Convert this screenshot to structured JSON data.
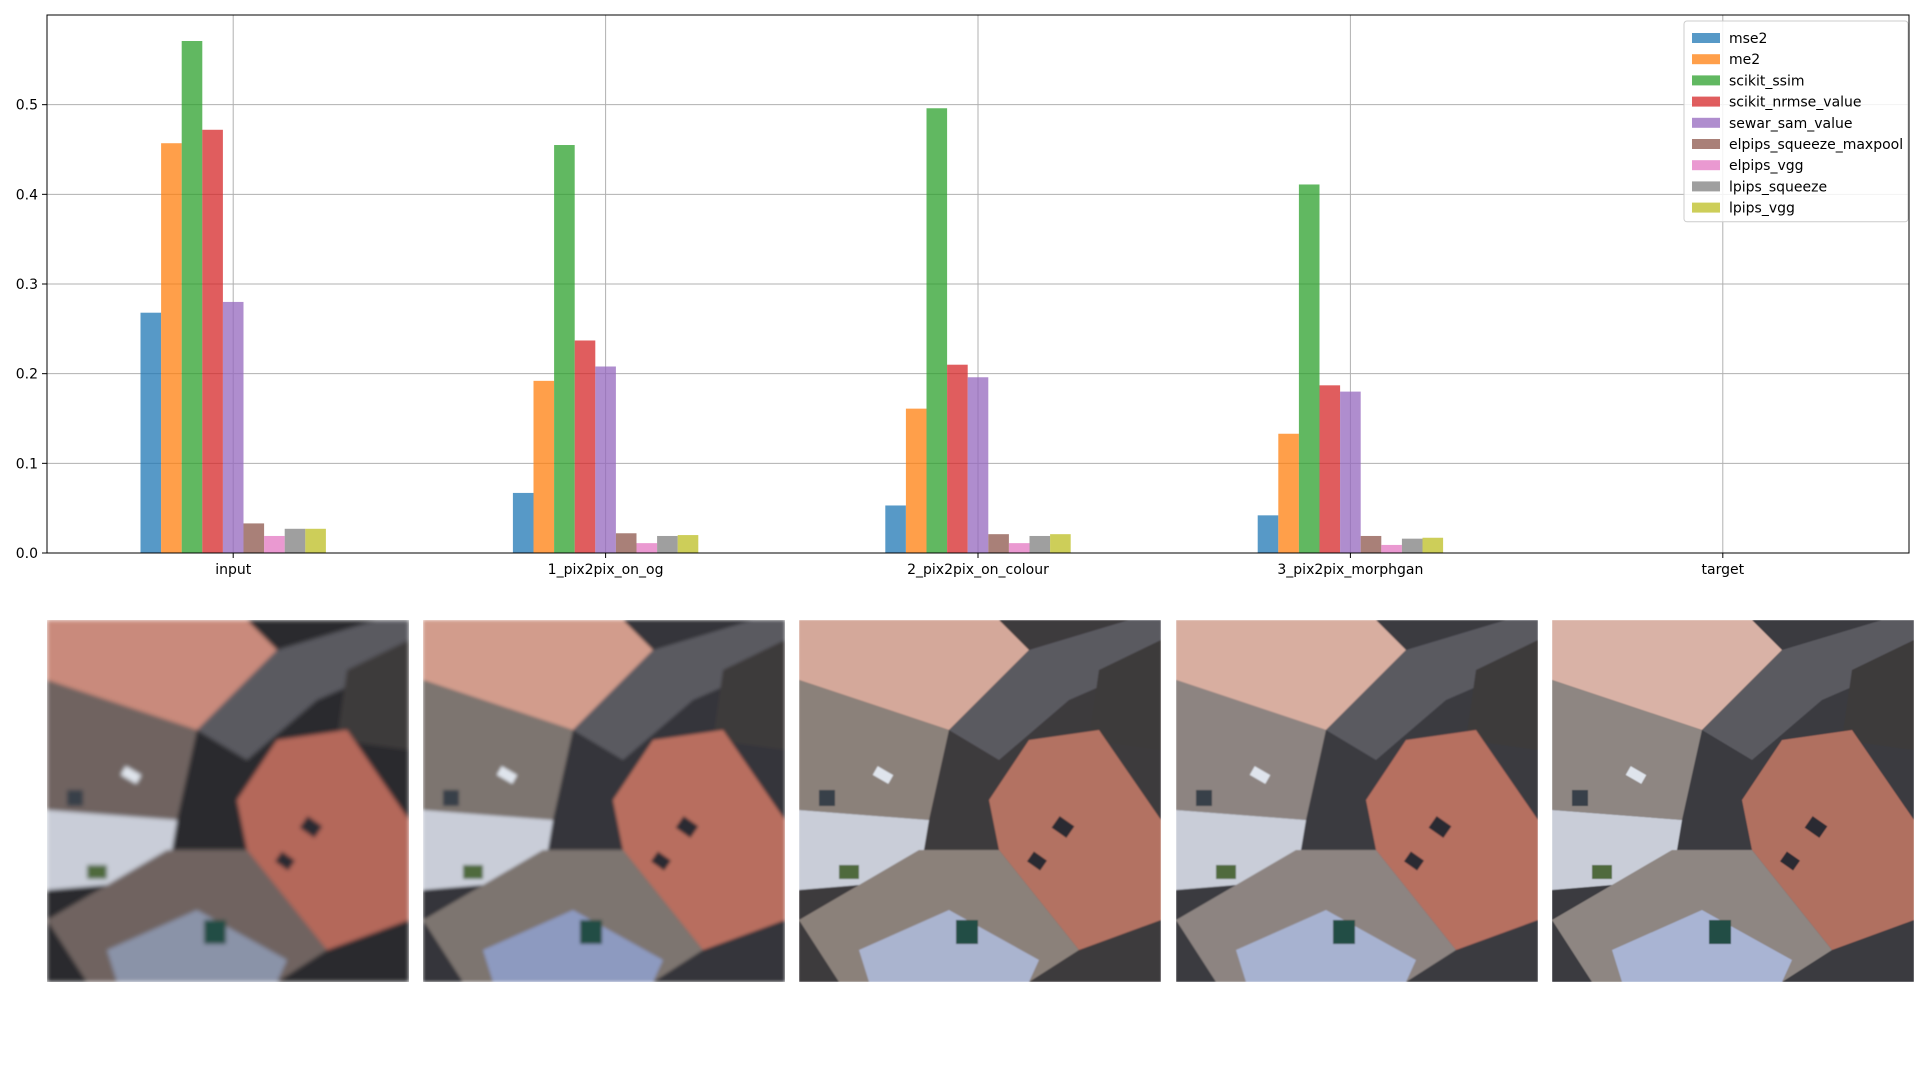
{
  "chart_data": {
    "type": "bar",
    "categories": [
      "input",
      "1_pix2pix_on_og",
      "2_pix2pix_on_colour",
      "3_pix2pix_morphgan",
      "target"
    ],
    "ylim": [
      0,
      0.6
    ],
    "yticks": [
      "0.0",
      "0.1",
      "0.2",
      "0.3",
      "0.4",
      "0.5"
    ],
    "grid": true,
    "legend_position": "top-right",
    "title": "",
    "xlabel": "",
    "ylabel": "",
    "series": [
      {
        "name": "mse2",
        "color": "#1f77b4",
        "values": [
          0.268,
          0.067,
          0.053,
          0.042,
          0
        ]
      },
      {
        "name": "me2",
        "color": "#ff7f0e",
        "values": [
          0.457,
          0.192,
          0.161,
          0.133,
          0
        ]
      },
      {
        "name": "scikit_ssim",
        "color": "#2ca02c",
        "values": [
          0.571,
          0.455,
          0.496,
          0.411,
          0
        ]
      },
      {
        "name": "scikit_nrmse_value",
        "color": "#d62728",
        "values": [
          0.472,
          0.237,
          0.21,
          0.187,
          0
        ]
      },
      {
        "name": "sewar_sam_value",
        "color": "#9467bd",
        "values": [
          0.28,
          0.208,
          0.196,
          0.18,
          0
        ]
      },
      {
        "name": "elpips_squeeze_maxpool",
        "color": "#8c564b",
        "values": [
          0.033,
          0.022,
          0.021,
          0.019,
          0
        ]
      },
      {
        "name": "elpips_vgg",
        "color": "#e377c2",
        "values": [
          0.019,
          0.011,
          0.011,
          0.009,
          0
        ]
      },
      {
        "name": "lpips_squeeze",
        "color": "#7f7f7f",
        "values": [
          0.027,
          0.019,
          0.019,
          0.016,
          0
        ]
      },
      {
        "name": "lpips_vgg",
        "color": "#bcbd22",
        "values": [
          0.027,
          0.02,
          0.021,
          0.017,
          0
        ]
      }
    ]
  },
  "images": [
    {
      "name": "input-image",
      "variant": "input"
    },
    {
      "name": "pix2pix-on-og-image",
      "variant": "1_pix2pix_on_og"
    },
    {
      "name": "pix2pix-on-colour-image",
      "variant": "2_pix2pix_on_colour"
    },
    {
      "name": "pix2pix-morphgan-image",
      "variant": "3_pix2pix_morphgan"
    },
    {
      "name": "target-image",
      "variant": "target"
    }
  ]
}
